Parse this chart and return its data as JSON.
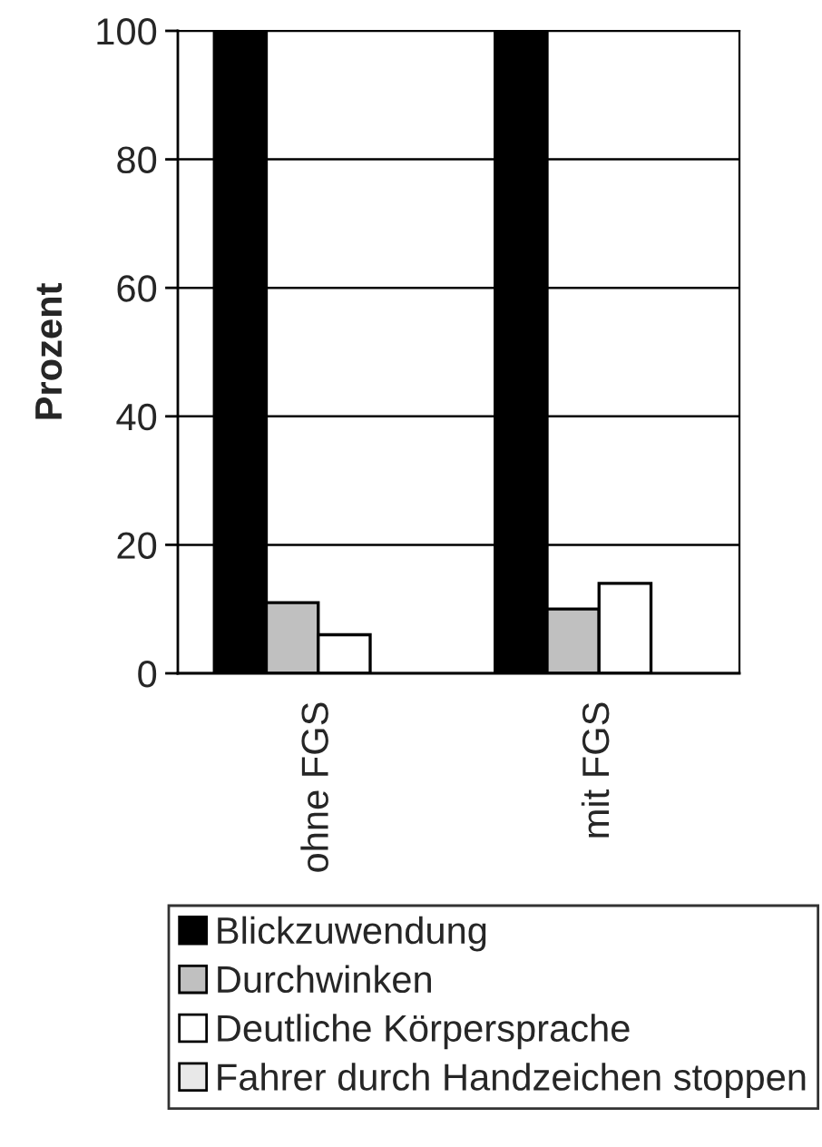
{
  "chart_data": {
    "type": "bar",
    "ylabel": "Prozent",
    "categories": [
      "ohne FGS",
      "mit FGS"
    ],
    "series": [
      {
        "name": "Blickzuwendung",
        "color": "#000000",
        "values": [
          100,
          100
        ]
      },
      {
        "name": "Durchwinken",
        "color": "#c0c0c0",
        "values": [
          11,
          10
        ]
      },
      {
        "name": "Deutliche Körpersprache",
        "color": "#ffffff",
        "values": [
          6,
          14
        ]
      },
      {
        "name": "Fahrer durch Handzeichen stoppen",
        "color": "#e8e8e8",
        "values": [
          0,
          0
        ]
      }
    ],
    "ylim": [
      0,
      100
    ],
    "yticks": [
      0,
      20,
      40,
      60,
      80,
      100
    ],
    "grid": "y",
    "legend": "bottom"
  }
}
